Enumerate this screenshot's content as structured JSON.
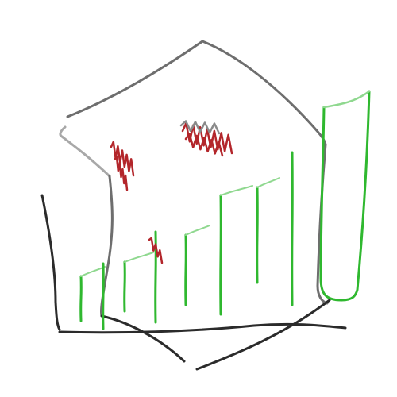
{
  "drawing": {
    "colors": {
      "background": "#ffffff",
      "outline_gray": "#6e6e6e",
      "outline_light": "#a8a8a8",
      "outline_dark": "#2b2b2b",
      "bar_green": "#2fb82f",
      "bar_green_light": "#8fd88f",
      "scribble_red": "#b3262b",
      "scribble_gray": "#8a8a8a"
    }
  }
}
